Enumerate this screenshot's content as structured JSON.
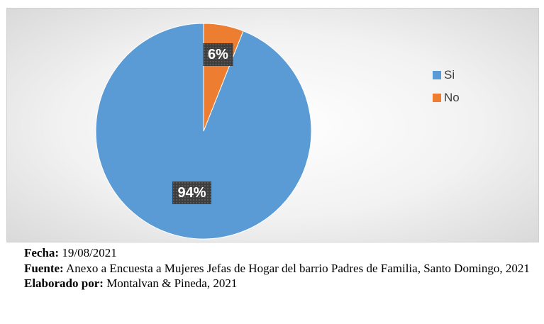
{
  "chart_data": {
    "type": "pie",
    "categories": [
      "Si",
      "No"
    ],
    "values": [
      94,
      6
    ],
    "labels": [
      "94%",
      "6%"
    ],
    "colors": [
      "#5B9BD5",
      "#ED7D31"
    ],
    "legend_position": "right"
  },
  "caption": {
    "fecha_label": "Fecha:",
    "fecha_value": "19/08/2021",
    "fuente_label": "Fuente:",
    "fuente_value": "Anexo a Encuesta a Mujeres Jefas de Hogar del barrio Padres de Familia, Santo Domingo, 2021",
    "elaborado_label": "Elaborado por:",
    "elaborado_value": "Montalvan & Pineda, 2021"
  }
}
